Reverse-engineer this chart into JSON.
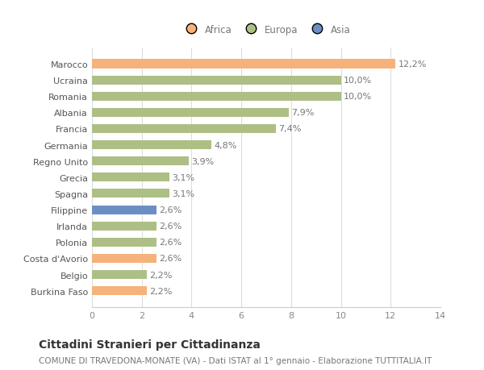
{
  "categories": [
    "Burkina Faso",
    "Belgio",
    "Costa d'Avorio",
    "Polonia",
    "Irlanda",
    "Filippine",
    "Spagna",
    "Grecia",
    "Regno Unito",
    "Germania",
    "Francia",
    "Albania",
    "Romania",
    "Ucraina",
    "Marocco"
  ],
  "values": [
    2.2,
    2.2,
    2.6,
    2.6,
    2.6,
    2.6,
    3.1,
    3.1,
    3.9,
    4.8,
    7.4,
    7.9,
    10.0,
    10.0,
    12.2
  ],
  "colors": [
    "#F5B27A",
    "#ADBF85",
    "#F5B27A",
    "#ADBF85",
    "#ADBF85",
    "#6B8FC4",
    "#ADBF85",
    "#ADBF85",
    "#ADBF85",
    "#ADBF85",
    "#ADBF85",
    "#ADBF85",
    "#ADBF85",
    "#ADBF85",
    "#F5B27A"
  ],
  "legend": [
    {
      "label": "Africa",
      "color": "#F5B27A"
    },
    {
      "label": "Europa",
      "color": "#ADBF85"
    },
    {
      "label": "Asia",
      "color": "#6B8FC4"
    }
  ],
  "xlim": [
    0,
    14
  ],
  "xticks": [
    0,
    2,
    4,
    6,
    8,
    10,
    12,
    14
  ],
  "title": "Cittadini Stranieri per Cittadinanza",
  "subtitle": "COMUNE DI TRAVEDONA-MONATE (VA) - Dati ISTAT al 1° gennaio - Elaborazione TUTTITALIA.IT",
  "background_color": "#ffffff",
  "bar_height": 0.55,
  "label_fontsize": 8,
  "tick_fontsize": 8,
  "title_fontsize": 10,
  "subtitle_fontsize": 7.5
}
